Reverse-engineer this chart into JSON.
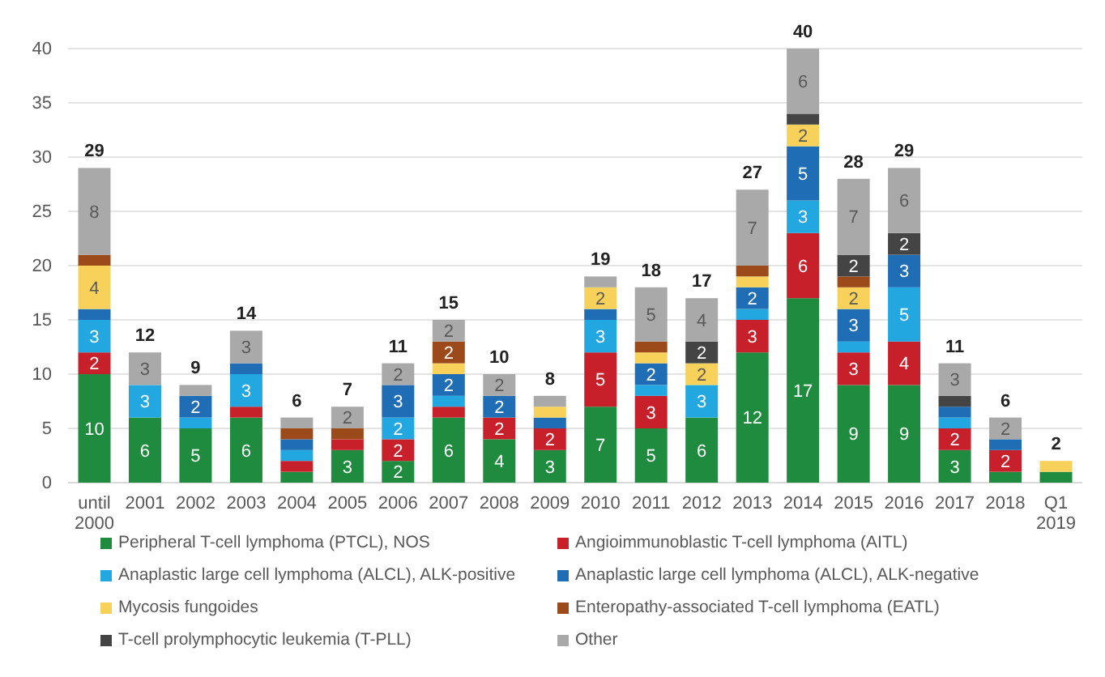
{
  "chart_data": {
    "type": "bar",
    "stacked": true,
    "categories": [
      "until 2000",
      "2001",
      "2002",
      "2003",
      "2004",
      "2005",
      "2006",
      "2007",
      "2008",
      "2009",
      "2010",
      "2011",
      "2012",
      "2013",
      "2014",
      "2015",
      "2016",
      "2017",
      "2018",
      "Q1 2019"
    ],
    "series": [
      {
        "name": "Peripheral T-cell lymphoma (PTCL), NOS",
        "color": "#1e8b3e",
        "values": [
          10,
          6,
          5,
          6,
          1,
          3,
          2,
          6,
          4,
          3,
          7,
          5,
          6,
          12,
          17,
          9,
          9,
          3,
          1,
          1
        ],
        "value_labels": [
          "10",
          "6",
          "5",
          "6",
          null,
          "3",
          "2",
          "6",
          "4",
          "3",
          "7",
          "5",
          "6",
          "12",
          "17",
          "9",
          "9",
          "3",
          null,
          null
        ]
      },
      {
        "name": "Angioimmunoblastic T-cell lymphoma (AITL)",
        "color": "#c8202a",
        "values": [
          2,
          0,
          0,
          1,
          1,
          1,
          2,
          1,
          2,
          2,
          5,
          3,
          0,
          3,
          6,
          3,
          4,
          2,
          2,
          0
        ],
        "value_labels": [
          "2",
          null,
          null,
          null,
          null,
          null,
          "2",
          null,
          "2",
          "2",
          "5",
          "3",
          null,
          "3",
          "6",
          "3",
          "4",
          "2",
          "2",
          null
        ]
      },
      {
        "name": "Anaplastic large cell lymphoma (ALCL), ALK-positive",
        "color": "#22a7e0",
        "values": [
          3,
          3,
          1,
          3,
          1,
          0,
          2,
          1,
          0,
          0,
          3,
          1,
          3,
          1,
          3,
          1,
          5,
          1,
          0,
          0
        ],
        "value_labels": [
          "3",
          "3",
          null,
          "3",
          null,
          null,
          "2",
          null,
          null,
          null,
          "3",
          null,
          "3",
          null,
          "3",
          null,
          "5",
          null,
          null,
          null
        ]
      },
      {
        "name": "Anaplastic large cell lymphoma (ALCL), ALK-negative",
        "color": "#1f6db5",
        "values": [
          1,
          0,
          2,
          1,
          1,
          0,
          3,
          2,
          2,
          1,
          1,
          2,
          0,
          2,
          5,
          3,
          3,
          1,
          1,
          0
        ],
        "value_labels": [
          null,
          null,
          "2",
          null,
          null,
          null,
          "3",
          "2",
          "2",
          null,
          null,
          "2",
          null,
          "2",
          "5",
          "3",
          "3",
          null,
          null,
          null
        ]
      },
      {
        "name": "Mycosis fungoides",
        "color": "#f8d15a",
        "values": [
          4,
          0,
          0,
          0,
          0,
          0,
          0,
          1,
          0,
          1,
          2,
          1,
          2,
          1,
          2,
          2,
          0,
          0,
          0,
          1
        ],
        "value_labels": [
          "4",
          null,
          null,
          null,
          null,
          null,
          null,
          null,
          null,
          null,
          "2",
          null,
          "2",
          null,
          "2",
          "2",
          null,
          null,
          null,
          null
        ]
      },
      {
        "name": "Enteropathy-associated T-cell lymphoma (EATL)",
        "color": "#9c4a1a",
        "values": [
          1,
          0,
          0,
          0,
          1,
          1,
          0,
          2,
          0,
          0,
          0,
          1,
          0,
          1,
          0,
          1,
          0,
          0,
          0,
          0
        ],
        "value_labels": [
          null,
          null,
          null,
          null,
          null,
          null,
          null,
          "2",
          null,
          null,
          null,
          null,
          null,
          null,
          null,
          null,
          null,
          null,
          null,
          null
        ]
      },
      {
        "name": "T-cell prolymphocytic leukemia (T-PLL)",
        "color": "#444444",
        "values": [
          0,
          0,
          0,
          0,
          0,
          0,
          0,
          0,
          0,
          0,
          0,
          0,
          2,
          0,
          1,
          2,
          2,
          1,
          0,
          0
        ],
        "value_labels": [
          null,
          null,
          null,
          null,
          null,
          null,
          null,
          null,
          null,
          null,
          null,
          null,
          "2",
          null,
          null,
          "2",
          "2",
          null,
          null,
          null
        ]
      },
      {
        "name": "Other",
        "color": "#a9a9a9",
        "values": [
          8,
          3,
          1,
          3,
          1,
          2,
          2,
          2,
          2,
          1,
          1,
          5,
          4,
          7,
          6,
          7,
          6,
          3,
          2,
          0
        ],
        "value_labels": [
          "8",
          "3",
          null,
          "3",
          null,
          "2",
          "2",
          "2",
          "2",
          null,
          null,
          "5",
          "4",
          "7",
          "6",
          "7",
          "6",
          "3",
          "2",
          null
        ]
      }
    ],
    "totals": [
      "29",
      "12",
      "9",
      "14",
      "6",
      "7",
      "11",
      "15",
      "10",
      "8",
      "19",
      "18",
      "17",
      "27",
      "40",
      "28",
      "29",
      "11",
      "6",
      "2"
    ],
    "ylim": [
      0,
      40
    ],
    "yticks": [
      0,
      5,
      10,
      15,
      20,
      25,
      30,
      35,
      40
    ],
    "grid": "y",
    "legend": "bottom"
  }
}
